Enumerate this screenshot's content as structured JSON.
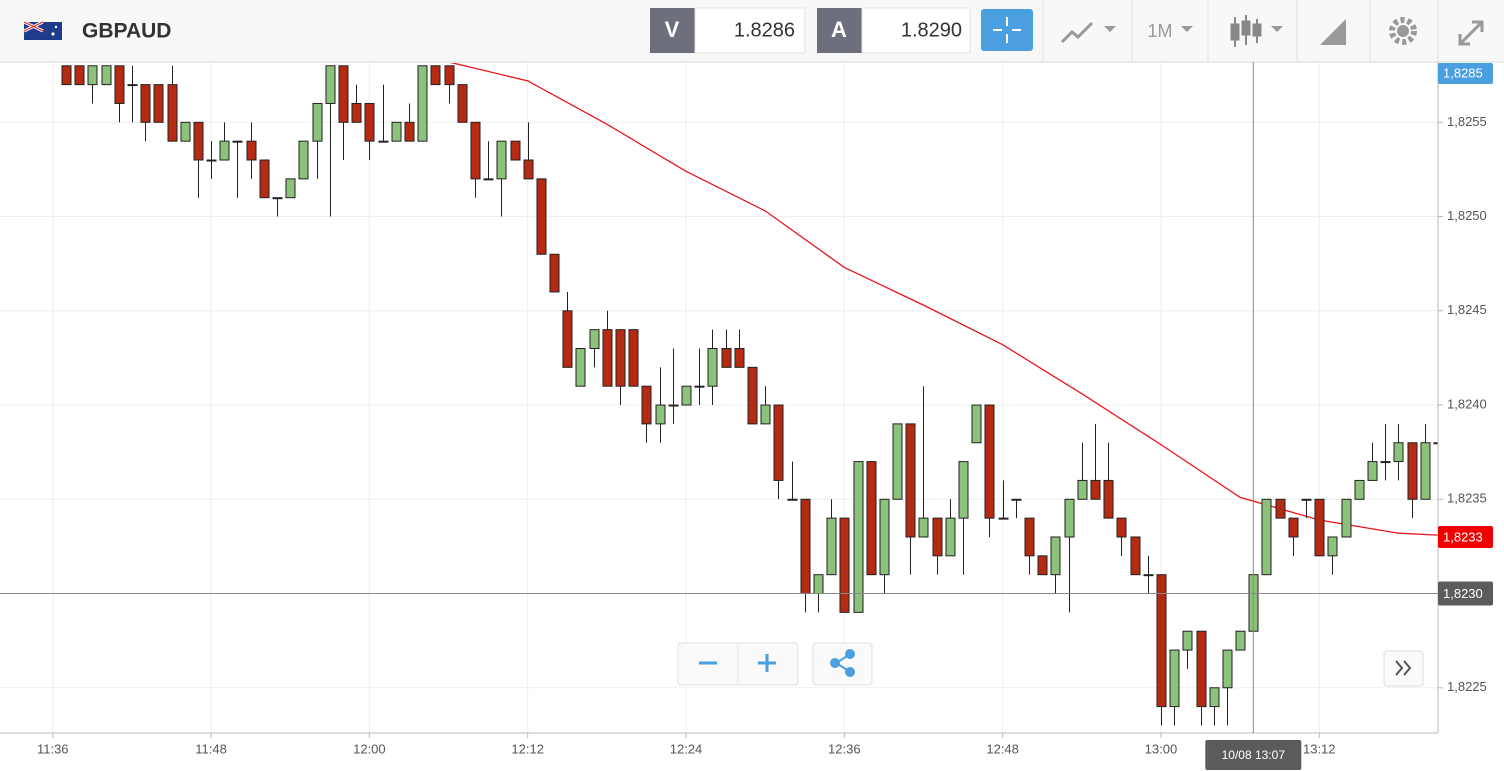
{
  "toolbar": {
    "symbol": "GBPAUD",
    "sell_label": "V",
    "sell_price": "1.8286",
    "buy_label": "A",
    "buy_price": "1.8290",
    "timeframe": "1M"
  },
  "chart_data": {
    "type": "candlestick",
    "up_color": "#8dc27c",
    "down_color": "#b52a12",
    "grid": true,
    "xlim": [
      "11:32",
      "13:21"
    ],
    "xticks": [
      "11:36",
      "11:48",
      "12:00",
      "12:12",
      "12:24",
      "12:36",
      "12:48",
      "13:00",
      "13:12"
    ],
    "ylim": [
      1.82226,
      1.82582
    ],
    "yticks": [
      {
        "value": 1.8225,
        "label": "1,8225"
      },
      {
        "value": 1.823,
        "label": "1,8230"
      },
      {
        "value": 1.8235,
        "label": "1,8235"
      },
      {
        "value": 1.824,
        "label": "1,8240"
      },
      {
        "value": 1.8245,
        "label": "1,8245"
      },
      {
        "value": 1.825,
        "label": "1,8250"
      },
      {
        "value": 1.8255,
        "label": "1,8255"
      }
    ],
    "x": [
      "11:37",
      "11:38",
      "11:39",
      "11:40",
      "11:41",
      "11:42",
      "11:43",
      "11:44",
      "11:45",
      "11:46",
      "11:47",
      "11:48",
      "11:49",
      "11:50",
      "11:51",
      "11:52",
      "11:53",
      "11:54",
      "11:55",
      "11:56",
      "11:57",
      "11:58",
      "11:59",
      "12:00",
      "12:01",
      "12:02",
      "12:03",
      "12:04",
      "12:05",
      "12:06",
      "12:07",
      "12:08",
      "12:09",
      "12:10",
      "12:11",
      "12:12",
      "12:13",
      "12:14",
      "12:15",
      "12:16",
      "12:17",
      "12:18",
      "12:19",
      "12:20",
      "12:21",
      "12:22",
      "12:23",
      "12:24",
      "12:25",
      "12:26",
      "12:27",
      "12:28",
      "12:29",
      "12:30",
      "12:31",
      "12:32",
      "12:33",
      "12:34",
      "12:35",
      "12:36",
      "12:37",
      "12:38",
      "12:39",
      "12:40",
      "12:41",
      "12:42",
      "12:43",
      "12:44",
      "12:45",
      "12:46",
      "12:47",
      "12:48",
      "12:49",
      "12:50",
      "12:51",
      "12:52",
      "12:53",
      "12:54",
      "12:55",
      "12:56",
      "12:57",
      "12:58",
      "12:59",
      "13:00",
      "13:01",
      "13:02",
      "13:03",
      "13:04",
      "13:05",
      "13:06",
      "13:07",
      "13:08",
      "13:09",
      "13:10",
      "13:11",
      "13:12",
      "13:13",
      "13:14",
      "13:15",
      "13:16",
      "13:17",
      "13:18",
      "13:19",
      "13:20",
      "13:21"
    ],
    "open": [
      1.8258,
      1.8258,
      1.8257,
      1.8257,
      1.8258,
      1.8257,
      1.8257,
      1.8257,
      1.8257,
      1.8254,
      1.8255,
      1.8253,
      1.8253,
      1.8254,
      1.8254,
      1.8253,
      1.8251,
      1.8251,
      1.8252,
      1.8254,
      1.8256,
      1.8258,
      1.8256,
      1.8256,
      1.8254,
      1.8254,
      1.8255,
      1.8254,
      1.8258,
      1.8258,
      1.8257,
      1.8255,
      1.8252,
      1.8252,
      1.8254,
      1.8253,
      1.8252,
      1.8248,
      1.8245,
      1.8241,
      1.8243,
      1.8244,
      1.8244,
      1.8244,
      1.8241,
      1.8239,
      1.824,
      1.824,
      1.8241,
      1.8241,
      1.8243,
      1.8243,
      1.8242,
      1.8239,
      1.824,
      1.8235,
      1.8235,
      1.823,
      1.8231,
      1.8234,
      1.8229,
      1.8237,
      1.8231,
      1.8235,
      1.8239,
      1.8233,
      1.8234,
      1.8232,
      1.8234,
      1.8238,
      1.824,
      1.8234,
      1.8235,
      1.8234,
      1.8232,
      1.8231,
      1.8233,
      1.8235,
      1.8236,
      1.8236,
      1.8234,
      1.8233,
      1.8231,
      1.8231,
      1.8224,
      1.8227,
      1.8228,
      1.8224,
      1.8225,
      1.8227,
      1.8228,
      1.8231,
      1.8235,
      1.8234,
      1.8235,
      1.8235,
      1.8232,
      1.8233,
      1.8235,
      1.8236,
      1.8237,
      1.8237,
      1.8238,
      1.8235,
      1.8238
    ],
    "high": [
      1.8258,
      1.8258,
      1.8258,
      1.8258,
      1.8258,
      1.8258,
      1.8257,
      1.8257,
      1.8258,
      1.8255,
      1.8255,
      1.8254,
      1.8255,
      1.8254,
      1.8255,
      1.8253,
      1.8251,
      1.8252,
      1.8254,
      1.8256,
      1.8258,
      1.8258,
      1.8257,
      1.8256,
      1.8257,
      1.8255,
      1.8256,
      1.8258,
      1.8258,
      1.8258,
      1.8257,
      1.8255,
      1.8254,
      1.8254,
      1.8254,
      1.8255,
      1.8252,
      1.8248,
      1.8246,
      1.8243,
      1.8244,
      1.8245,
      1.8244,
      1.8244,
      1.8241,
      1.8242,
      1.8243,
      1.8241,
      1.8243,
      1.8244,
      1.8244,
      1.8244,
      1.8242,
      1.8241,
      1.824,
      1.8237,
      1.8235,
      1.8231,
      1.8235,
      1.8234,
      1.8237,
      1.8237,
      1.8235,
      1.8239,
      1.8239,
      1.8241,
      1.8234,
      1.8235,
      1.8237,
      1.824,
      1.824,
      1.8236,
      1.8235,
      1.8234,
      1.8232,
      1.8233,
      1.8235,
      1.8238,
      1.8239,
      1.8238,
      1.8234,
      1.8233,
      1.8232,
      1.8231,
      1.8227,
      1.8228,
      1.8228,
      1.8225,
      1.8227,
      1.8228,
      1.8231,
      1.8235,
      1.8235,
      1.8234,
      1.8235,
      1.8235,
      1.8233,
      1.8235,
      1.8236,
      1.8238,
      1.8239,
      1.8239,
      1.8238,
      1.8239,
      1.8239
    ],
    "low": [
      1.8257,
      1.8257,
      1.8256,
      1.8257,
      1.8255,
      1.8255,
      1.8254,
      1.8255,
      1.8254,
      1.8254,
      1.8251,
      1.8252,
      1.8253,
      1.8251,
      1.8252,
      1.8251,
      1.825,
      1.8251,
      1.8252,
      1.8252,
      1.825,
      1.8253,
      1.8255,
      1.8253,
      1.8254,
      1.8254,
      1.8254,
      1.8254,
      1.8257,
      1.8256,
      1.8255,
      1.8251,
      1.8252,
      1.825,
      1.8253,
      1.8252,
      1.8248,
      1.8246,
      1.8242,
      1.8241,
      1.8242,
      1.8241,
      1.824,
      1.8241,
      1.8238,
      1.8238,
      1.8239,
      1.824,
      1.824,
      1.824,
      1.8242,
      1.8242,
      1.8239,
      1.8239,
      1.8235,
      1.8235,
      1.8229,
      1.8229,
      1.8231,
      1.8229,
      1.8229,
      1.8231,
      1.823,
      1.8235,
      1.8231,
      1.8233,
      1.8231,
      1.8232,
      1.8231,
      1.8238,
      1.8233,
      1.8234,
      1.8234,
      1.8231,
      1.8231,
      1.823,
      1.8229,
      1.8235,
      1.8235,
      1.8234,
      1.8232,
      1.8231,
      1.823,
      1.8223,
      1.8223,
      1.8226,
      1.8223,
      1.8223,
      1.8223,
      1.8227,
      1.8228,
      1.8231,
      1.8234,
      1.8232,
      1.8234,
      1.8232,
      1.8231,
      1.8233,
      1.8235,
      1.8236,
      1.8236,
      1.8236,
      1.8234,
      1.8235,
      1.8237
    ],
    "close": [
      1.8257,
      1.8257,
      1.8258,
      1.8258,
      1.8256,
      1.8257,
      1.8255,
      1.8255,
      1.8254,
      1.8255,
      1.8253,
      1.8253,
      1.8254,
      1.8254,
      1.8253,
      1.8251,
      1.8251,
      1.8252,
      1.8254,
      1.8256,
      1.8258,
      1.8255,
      1.8255,
      1.8254,
      1.8254,
      1.8255,
      1.8254,
      1.8258,
      1.8257,
      1.8257,
      1.8255,
      1.8252,
      1.8252,
      1.8254,
      1.8253,
      1.8252,
      1.8248,
      1.8246,
      1.8242,
      1.8243,
      1.8244,
      1.8241,
      1.8241,
      1.8241,
      1.8239,
      1.824,
      1.824,
      1.8241,
      1.8241,
      1.8243,
      1.8242,
      1.8242,
      1.8239,
      1.824,
      1.8236,
      1.8235,
      1.823,
      1.8231,
      1.8234,
      1.8229,
      1.8237,
      1.8231,
      1.8235,
      1.8239,
      1.8233,
      1.8234,
      1.8232,
      1.8234,
      1.8237,
      1.824,
      1.8234,
      1.8234,
      1.8235,
      1.8232,
      1.8231,
      1.8233,
      1.8235,
      1.8236,
      1.8235,
      1.8234,
      1.8233,
      1.8231,
      1.8231,
      1.8224,
      1.8227,
      1.8228,
      1.8224,
      1.8225,
      1.8227,
      1.8228,
      1.8231,
      1.8235,
      1.8234,
      1.8233,
      1.8235,
      1.8232,
      1.8233,
      1.8235,
      1.8236,
      1.8237,
      1.8237,
      1.8238,
      1.8235,
      1.8238,
      1.8238
    ],
    "moving_average": {
      "color": "#e8141a",
      "x": [
        "12:06",
        "12:12",
        "12:18",
        "12:24",
        "12:30",
        "12:36",
        "12:42",
        "12:48",
        "12:54",
        "13:00",
        "13:06",
        "13:12",
        "13:18",
        "13:21"
      ],
      "values": [
        1.82582,
        1.82572,
        1.82549,
        1.82524,
        1.82503,
        1.82473,
        1.82453,
        1.82432,
        1.82406,
        1.82379,
        1.82351,
        1.82339,
        1.82332,
        1.82331
      ]
    },
    "last_price": {
      "value": 1.8233,
      "label": "1,8233",
      "color": "#f00000"
    },
    "offscale_price_label": "1,8285",
    "crosshair": {
      "x": {
        "value": "13:07",
        "label": "10/08 13:07"
      },
      "y": {
        "value": 1.823,
        "label": "1,8230"
      }
    }
  }
}
